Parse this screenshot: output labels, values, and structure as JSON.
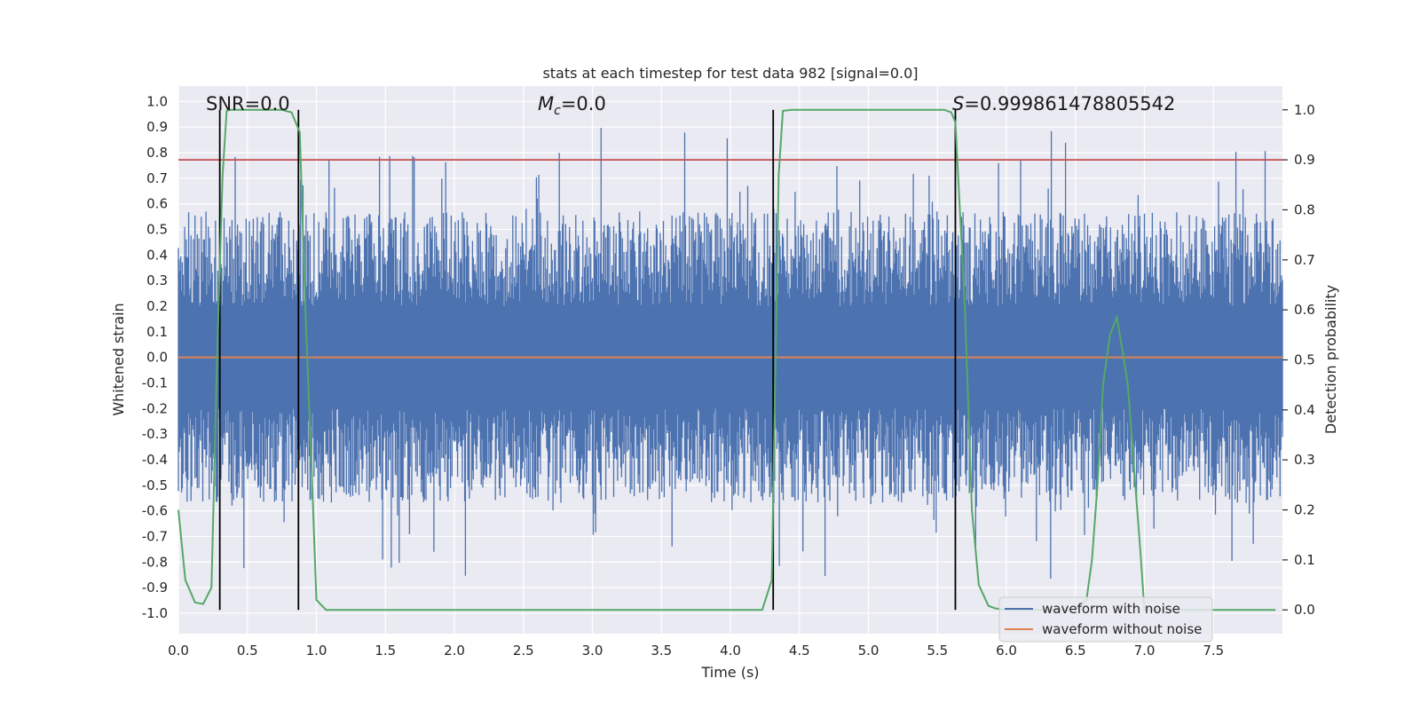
{
  "chart_data": {
    "type": "line",
    "title": "stats at each timestep for test data 982 [signal=0.0]",
    "xlabel": "Time (s)",
    "ylabel": "Whitened strain",
    "y2label": "Detection probability",
    "xlim": [
      0.0,
      8.0
    ],
    "ylim": [
      -1.08,
      1.06
    ],
    "y2lim": [
      -0.0475,
      1.0475
    ],
    "xticks": [
      "0.0",
      "0.5",
      "1.0",
      "1.5",
      "2.0",
      "2.5",
      "3.0",
      "3.5",
      "4.0",
      "4.5",
      "5.0",
      "5.5",
      "6.0",
      "6.5",
      "7.0",
      "7.5"
    ],
    "yticks": [
      "1.0",
      "0.9",
      "0.8",
      "0.7",
      "0.6",
      "0.5",
      "0.4",
      "0.3",
      "0.2",
      "0.1",
      "0.0",
      "-0.1",
      "-0.2",
      "-0.3",
      "-0.4",
      "-0.5",
      "-0.6",
      "-0.7",
      "-0.8",
      "-0.9",
      "-1.0"
    ],
    "y2ticks": [
      "1.0",
      "0.9",
      "0.8",
      "0.7",
      "0.6",
      "0.5",
      "0.4",
      "0.3",
      "0.2",
      "0.1",
      "0.0"
    ],
    "annotations": {
      "snr": "SNR=0.0",
      "mc_symbol": "M",
      "mc_sub": "c",
      "mc_value": "=0.0",
      "s_symbol": "S",
      "s_value": "=0.999861478805542"
    },
    "threshold": 0.9,
    "vlines": [
      0.3,
      0.87,
      4.31,
      5.63
    ],
    "legend": {
      "position": "lower-right",
      "entries": [
        "waveform with noise",
        "waveform without noise"
      ]
    },
    "series": [
      {
        "name": "waveform with noise",
        "color": "#4c72b0",
        "envelope_pos": 0.42,
        "envelope_neg": -0.42
      },
      {
        "name": "waveform without noise",
        "color": "#dd8452",
        "value": 0.0
      },
      {
        "name": "detection probability",
        "color": "#55a868",
        "axis": "right",
        "x": [
          0.0,
          0.05,
          0.12,
          0.18,
          0.24,
          0.28,
          0.32,
          0.35,
          0.38,
          0.45,
          0.6,
          0.75,
          0.82,
          0.88,
          0.92,
          0.97,
          1.0,
          1.07,
          1.5,
          2.0,
          3.0,
          4.0,
          4.23,
          4.3,
          4.35,
          4.38,
          4.44,
          4.6,
          5.0,
          5.4,
          5.55,
          5.6,
          5.63,
          5.7,
          5.75,
          5.8,
          5.87,
          5.92,
          6.0,
          6.3,
          6.5,
          6.58,
          6.62,
          6.66,
          6.7,
          6.75,
          6.8,
          6.84,
          6.88,
          6.92,
          6.97,
          7.0,
          7.5,
          7.95
        ],
        "values": [
          0.2,
          0.06,
          0.015,
          0.012,
          0.045,
          0.5,
          0.87,
          0.998,
          1.0,
          1.0,
          1.0,
          1.0,
          0.995,
          0.955,
          0.6,
          0.25,
          0.02,
          0.0,
          0.0,
          0.0,
          0.0,
          0.0,
          0.0,
          0.06,
          0.87,
          0.998,
          1.0,
          1.0,
          1.0,
          1.0,
          1.0,
          0.995,
          0.975,
          0.6,
          0.2,
          0.05,
          0.008,
          0.003,
          0.0,
          0.0,
          0.0,
          0.02,
          0.1,
          0.25,
          0.45,
          0.55,
          0.585,
          0.52,
          0.45,
          0.3,
          0.12,
          0.0,
          0.0,
          0.0
        ]
      }
    ]
  },
  "colors": {
    "plot_bg": "#eaeaf2",
    "grid": "#ffffff",
    "threshold": "#c44e52",
    "vline": "#000000"
  }
}
